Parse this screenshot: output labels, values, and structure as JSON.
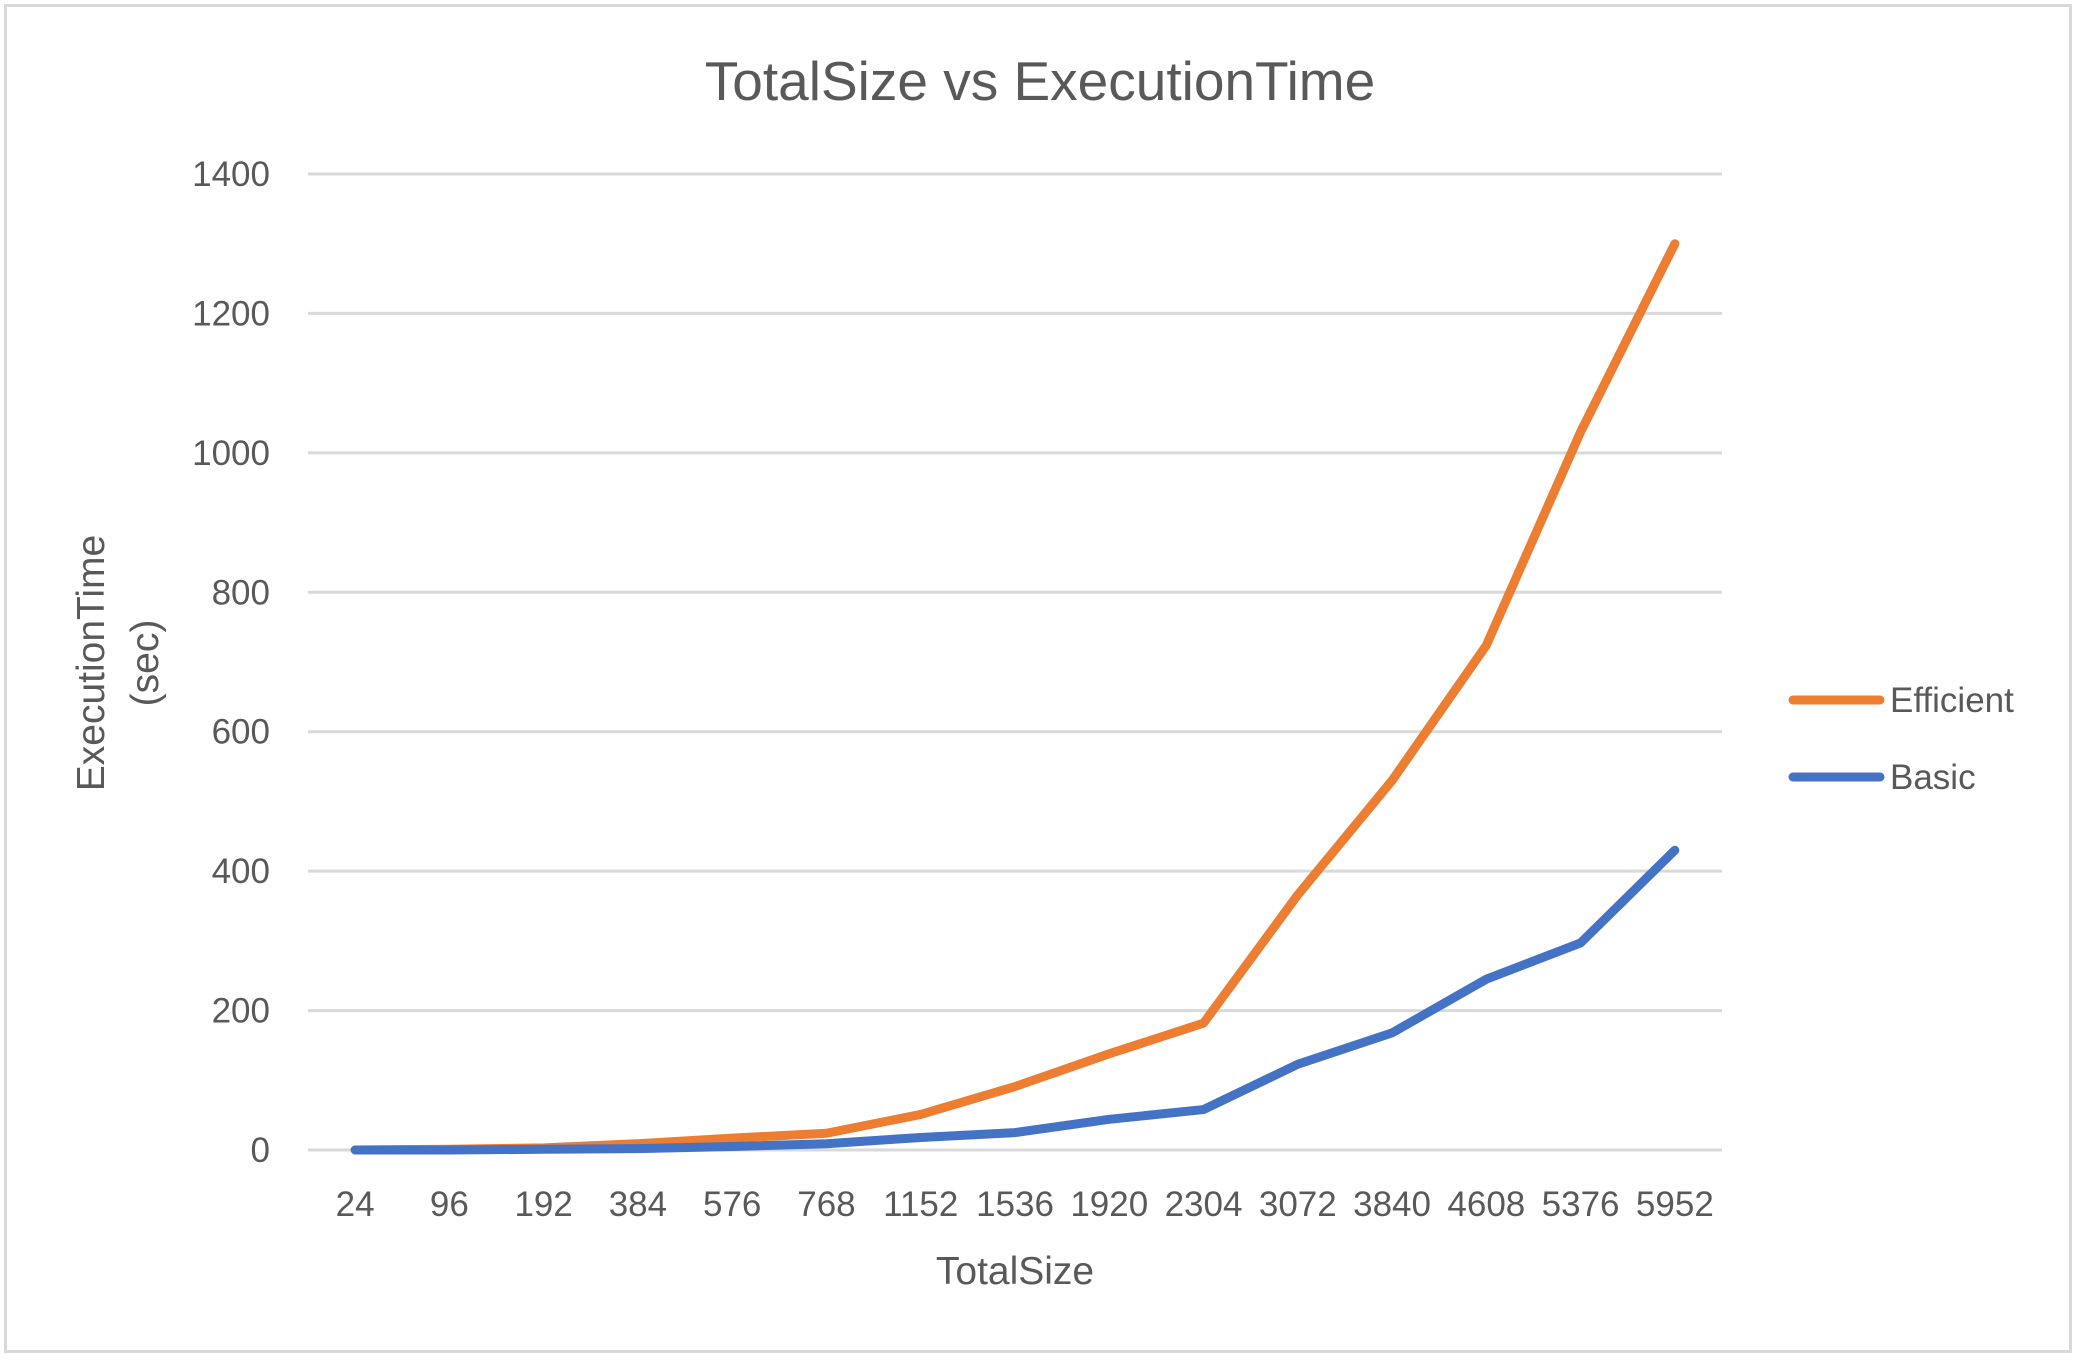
{
  "chart_data": {
    "type": "line",
    "title": "TotalSize vs ExecutionTime",
    "xlabel": "TotalSize",
    "ylabel_lines": [
      "ExecutionTime",
      "(sec)"
    ],
    "categories": [
      "24",
      "96",
      "192",
      "384",
      "576",
      "768",
      "1152",
      "1536",
      "1920",
      "2304",
      "3072",
      "3840",
      "4608",
      "5376",
      "5952"
    ],
    "yticks": [
      "0",
      "200",
      "400",
      "600",
      "800",
      "1000",
      "1200",
      "1400"
    ],
    "ylim": [
      0,
      1400
    ],
    "grid": true,
    "legend_position": "right",
    "series": [
      {
        "name": "Efficient",
        "color": "#ed7d31",
        "values": [
          0,
          1,
          3,
          9,
          17,
          24,
          51,
          91,
          138,
          182,
          366,
          530,
          724,
          1030,
          1300
        ]
      },
      {
        "name": "Basic",
        "color": "#4472c4",
        "values": [
          0,
          0,
          1,
          2,
          5,
          9,
          18,
          25,
          44,
          58,
          123,
          168,
          245,
          297,
          430
        ]
      }
    ]
  }
}
